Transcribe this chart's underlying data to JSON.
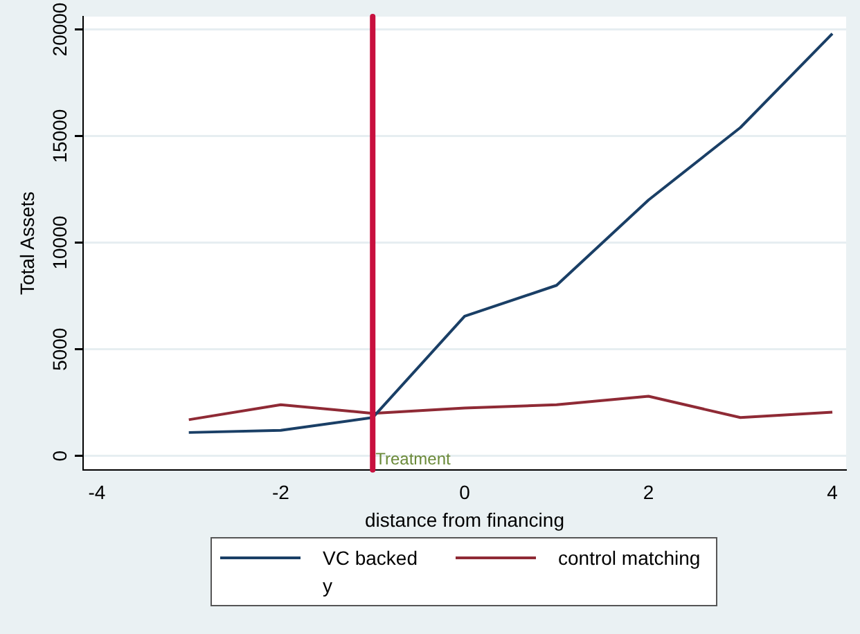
{
  "chart_data": {
    "type": "line",
    "xlabel": "distance from financing",
    "ylabel": "Total Assets",
    "x": [
      -3,
      -2,
      -1,
      0,
      1,
      2,
      3,
      4
    ],
    "series": [
      {
        "name": "VC backed",
        "color": "#1a3f66",
        "values": [
          1100,
          1200,
          1800,
          6550,
          8000,
          12000,
          15400,
          19800
        ]
      },
      {
        "name": "control matching",
        "color": "#8f2a35",
        "values": [
          1700,
          2400,
          2000,
          2250,
          2400,
          2800,
          1800,
          2050
        ]
      },
      {
        "name": "y",
        "values": [
          null,
          null,
          null,
          null,
          null,
          null,
          null,
          null
        ]
      }
    ],
    "xlim": [
      -4.15,
      4.15
    ],
    "xticks": [
      -4,
      -2,
      0,
      2,
      4
    ],
    "ylim": [
      -650,
      20600
    ],
    "yticks": [
      0,
      5000,
      10000,
      15000,
      20000
    ],
    "ref_lines": [
      {
        "axis": "x",
        "value": -1,
        "label": "Treatment",
        "color": "#c8103e"
      }
    ],
    "grid": "y",
    "legend": "bottom",
    "marker": "none",
    "line_style": "solid"
  }
}
